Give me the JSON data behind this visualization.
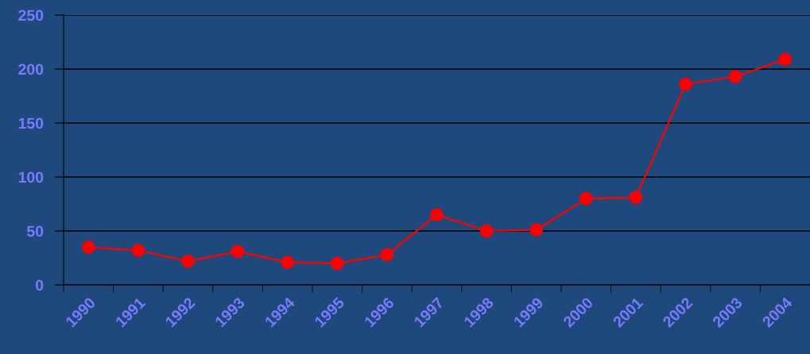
{
  "chart_data": {
    "type": "line",
    "categories": [
      "1990",
      "1991",
      "1992",
      "1993",
      "1994",
      "1995",
      "1996",
      "1997",
      "1998",
      "1999",
      "2000",
      "2001",
      "2002",
      "2003",
      "2004"
    ],
    "series": [
      {
        "color": "#ff0000",
        "values": [
          35,
          32,
          22,
          31,
          21,
          20,
          28,
          65,
          50,
          51,
          80,
          81,
          186,
          193,
          209
        ]
      }
    ],
    "ylim": [
      0,
      250
    ],
    "yticks": [
      0,
      50,
      100,
      150,
      200,
      250
    ],
    "grid": "y",
    "legend": false,
    "marker": "circle",
    "line_style": "solid"
  }
}
